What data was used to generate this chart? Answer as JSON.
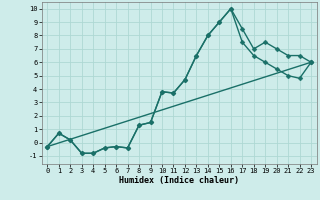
{
  "xlabel": "Humidex (Indice chaleur)",
  "background_color": "#ceecea",
  "grid_color": "#aed8d4",
  "line_color": "#1a7068",
  "markersize": 2.5,
  "linewidth": 1.0,
  "xlim": [
    -0.5,
    23.5
  ],
  "ylim": [
    -1.6,
    10.5
  ],
  "xticks": [
    0,
    1,
    2,
    3,
    4,
    5,
    6,
    7,
    8,
    9,
    10,
    11,
    12,
    13,
    14,
    15,
    16,
    17,
    18,
    19,
    20,
    21,
    22,
    23
  ],
  "yticks": [
    -1,
    0,
    1,
    2,
    3,
    4,
    5,
    6,
    7,
    8,
    9,
    10
  ],
  "line1_x": [
    0,
    1,
    2,
    3,
    4,
    5,
    6,
    7,
    8,
    9,
    10,
    11,
    12,
    13,
    14,
    15,
    16,
    17,
    18,
    19,
    20,
    21,
    22,
    23
  ],
  "line1_y": [
    -0.3,
    0.7,
    0.2,
    -0.8,
    -0.8,
    -0.4,
    -0.3,
    -0.4,
    1.3,
    1.5,
    3.8,
    3.7,
    4.7,
    6.5,
    8.0,
    9.0,
    10.0,
    8.5,
    7.0,
    7.5,
    7.0,
    6.5,
    6.5,
    6.0
  ],
  "line2_x": [
    0,
    1,
    2,
    3,
    4,
    5,
    6,
    7,
    8,
    9,
    10,
    11,
    12,
    13,
    14,
    15,
    16,
    17,
    18,
    19,
    20,
    21,
    22,
    23
  ],
  "line2_y": [
    -0.3,
    0.7,
    0.2,
    -0.8,
    -0.8,
    -0.4,
    -0.3,
    -0.4,
    1.3,
    1.5,
    3.8,
    3.7,
    4.7,
    6.5,
    8.0,
    9.0,
    10.0,
    7.5,
    6.5,
    6.0,
    5.5,
    5.0,
    4.8,
    6.0
  ],
  "line3_x": [
    0,
    23
  ],
  "line3_y": [
    -0.3,
    6.0
  ]
}
